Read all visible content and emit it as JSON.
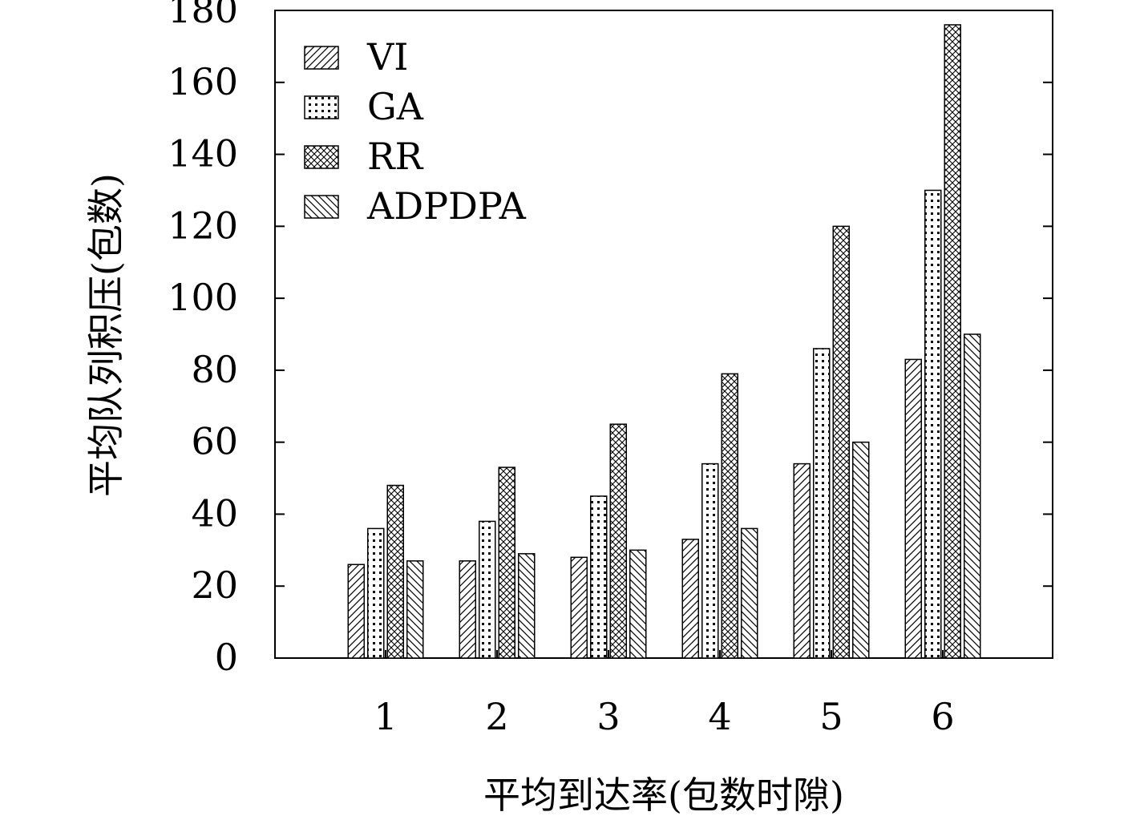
{
  "chart_data": {
    "type": "bar",
    "title": "",
    "xlabel": "平均到达率(包数时隙)",
    "ylabel": "平均队列积压(包数)",
    "categories": [
      "1",
      "2",
      "3",
      "4",
      "5",
      "6"
    ],
    "ylim": [
      0,
      180
    ],
    "yticks": [
      "0",
      "20",
      "40",
      "60",
      "80",
      "100",
      "120",
      "140",
      "160",
      "180"
    ],
    "grid": false,
    "legend_position": "top-left",
    "series": [
      {
        "name": "VI",
        "pattern": "diag-lines",
        "values": [
          26,
          27,
          28,
          33,
          54,
          83
        ]
      },
      {
        "name": "GA",
        "pattern": "dots",
        "values": [
          36,
          38,
          45,
          54,
          86,
          130
        ]
      },
      {
        "name": "RR",
        "pattern": "crosshatch",
        "values": [
          48,
          53,
          65,
          79,
          120,
          176
        ]
      },
      {
        "name": "ADPDPA",
        "pattern": "back-diag-lines",
        "values": [
          27,
          29,
          30,
          36,
          60,
          90
        ]
      }
    ]
  }
}
